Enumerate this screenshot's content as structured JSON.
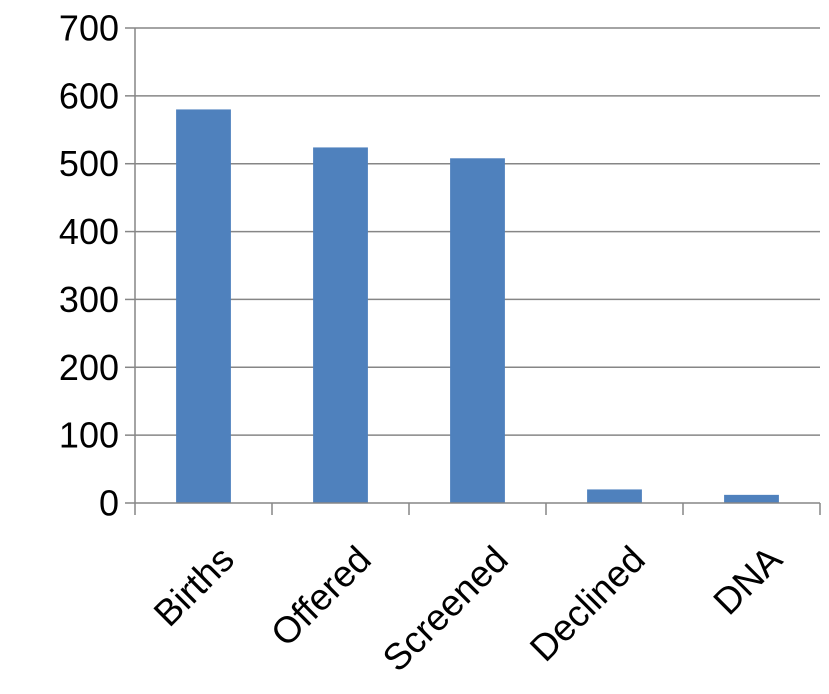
{
  "chart_data": {
    "type": "bar",
    "title": "",
    "xlabel": "",
    "ylabel": "",
    "categories": [
      "Births",
      "Offered",
      "Screened",
      "Declined",
      "DNA"
    ],
    "values": [
      580,
      524,
      508,
      20,
      12
    ],
    "ylim": [
      0,
      700
    ],
    "yticks": [
      0,
      100,
      200,
      300,
      400,
      500,
      600,
      700
    ],
    "grid": true,
    "legend": "none",
    "bar_color": "#4F81BD",
    "grid_color": "#868686"
  }
}
